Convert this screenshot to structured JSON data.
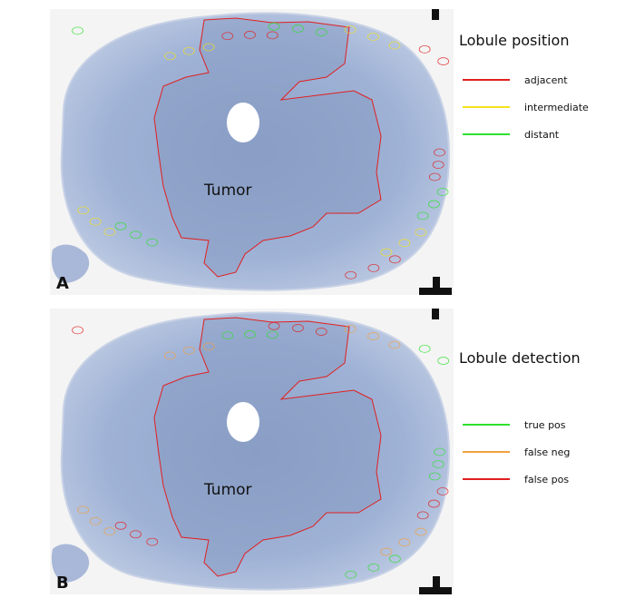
{
  "panels": [
    {
      "label": "A",
      "tumor_label": "Tumor",
      "legend_title": "Lobule position",
      "legend": [
        {
          "name": "adjacent",
          "color": "#e02020"
        },
        {
          "name": "intermediate",
          "color": "#f2e21e"
        },
        {
          "name": "distant",
          "color": "#2fe02f"
        }
      ]
    },
    {
      "label": "B",
      "tumor_label": "Tumor",
      "legend_title": "Lobule detection",
      "legend": [
        {
          "name": "true pos",
          "color": "#2fe02f"
        },
        {
          "name": "false neg",
          "color": "#f3a040"
        },
        {
          "name": "false pos",
          "color": "#e02020"
        }
      ]
    }
  ]
}
